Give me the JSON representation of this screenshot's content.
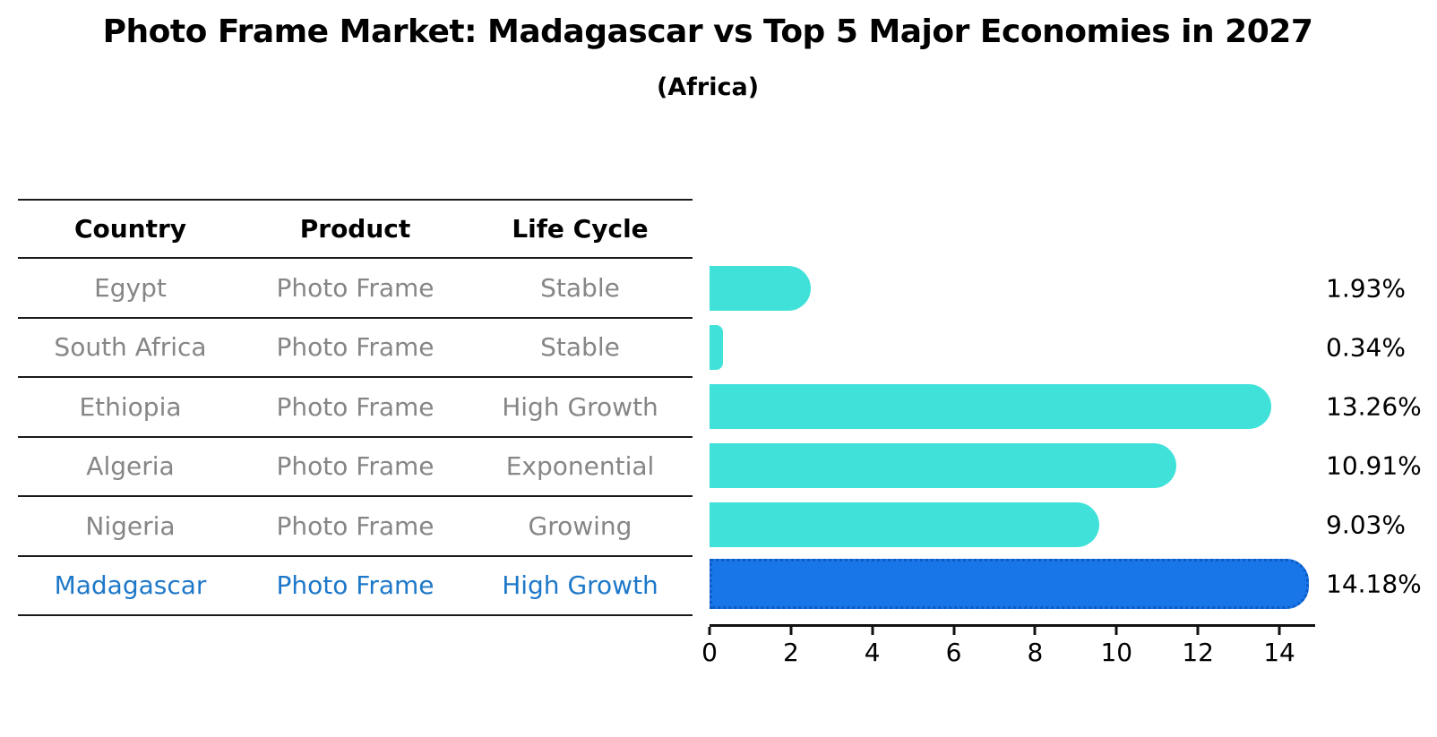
{
  "title": "Photo Frame Market: Madagascar vs Top 5 Major Economies in 2027",
  "subtitle": "(Africa)",
  "table": {
    "headers": [
      "Country",
      "Product",
      "Life Cycle"
    ],
    "rows": [
      {
        "country": "Egypt",
        "product": "Photo Frame",
        "life_cycle": "Stable"
      },
      {
        "country": "South Africa",
        "product": "Photo Frame",
        "life_cycle": "Stable"
      },
      {
        "country": "Ethiopia",
        "product": "Photo Frame",
        "life_cycle": "High Growth"
      },
      {
        "country": "Algeria",
        "product": "Photo Frame",
        "life_cycle": "Exponential"
      },
      {
        "country": "Nigeria",
        "product": "Photo Frame",
        "life_cycle": "Growing"
      },
      {
        "country": "Madagascar",
        "product": "Photo Frame",
        "life_cycle": "High Growth"
      }
    ],
    "highlight_row_index": 5
  },
  "chart_data": {
    "type": "bar",
    "orientation": "horizontal",
    "title": "Photo Frame Market: Madagascar vs Top 5 Major Economies in 2027",
    "subtitle": "(Africa)",
    "categories": [
      "Egypt",
      "South Africa",
      "Ethiopia",
      "Algeria",
      "Nigeria",
      "Madagascar"
    ],
    "values": [
      1.93,
      0.34,
      13.26,
      10.91,
      9.03,
      14.18
    ],
    "value_labels": [
      "1.93%",
      "0.34%",
      "13.26%",
      "10.91%",
      "9.03%",
      "14.18%"
    ],
    "x_ticks": [
      0,
      2,
      4,
      6,
      8,
      10,
      12,
      14
    ],
    "xlim": [
      0,
      14.88
    ],
    "grid": false,
    "legend": null,
    "highlight_index": 5
  },
  "colors": {
    "bar": "#40E1D9",
    "highlight_bar": "#1976E8",
    "highlight_bar_border": "#0D5BC4",
    "highlight_text": "#1E78C9",
    "table_text": "#868686",
    "axis": "#111111"
  }
}
